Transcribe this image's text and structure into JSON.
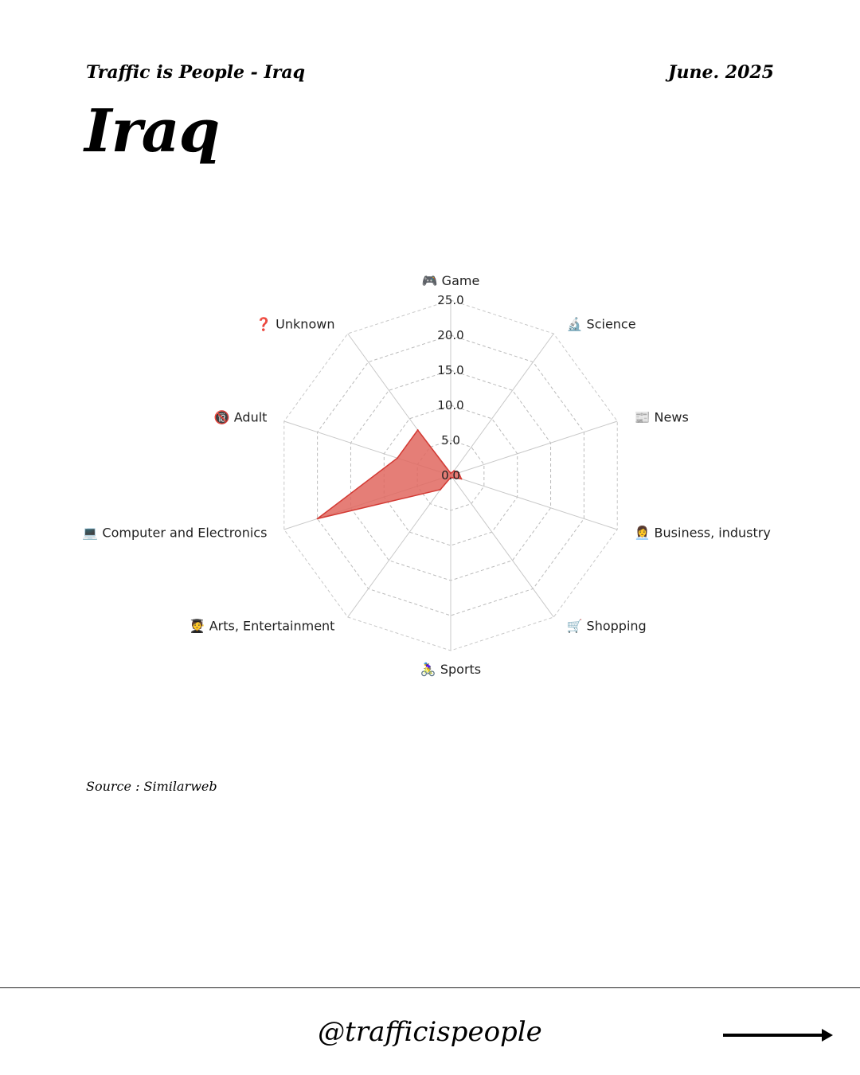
{
  "header": {
    "left_title": "Traffic is People - Iraq",
    "date": "June. 2025"
  },
  "page_title": "Iraq",
  "source": "Source : Similarweb",
  "footer": {
    "handle": "@trafficispeople",
    "arrow_icon": "right-arrow-icon"
  },
  "chart_data": {
    "type": "radar",
    "title": "",
    "categories": [
      "🎮 Game",
      "🔬 Science",
      "📰 News",
      "👩‍💼 Business, industry",
      "🛒 Shopping",
      "🚴‍♀️ Sports",
      "🧑‍🎓 Arts, Entertainment",
      "💻 Computer and Electronics",
      "🔞 Adult",
      "❓ Unknown"
    ],
    "series": [
      {
        "values": [
          0.3,
          0.8,
          1.2,
          1.6,
          0.4,
          0.3,
          2.5,
          20.0,
          8.0,
          8.0
        ]
      }
    ],
    "rlim": [
      0,
      25
    ],
    "ticks": [
      "0.0",
      "5.0",
      "10.0",
      "15.0",
      "20.0",
      "25.0"
    ],
    "grid": true,
    "colors": {
      "fill": "#e0675f",
      "stroke": "#d33a34",
      "grid": "#bbbbbb",
      "spoke": "#c8c8c8"
    }
  }
}
